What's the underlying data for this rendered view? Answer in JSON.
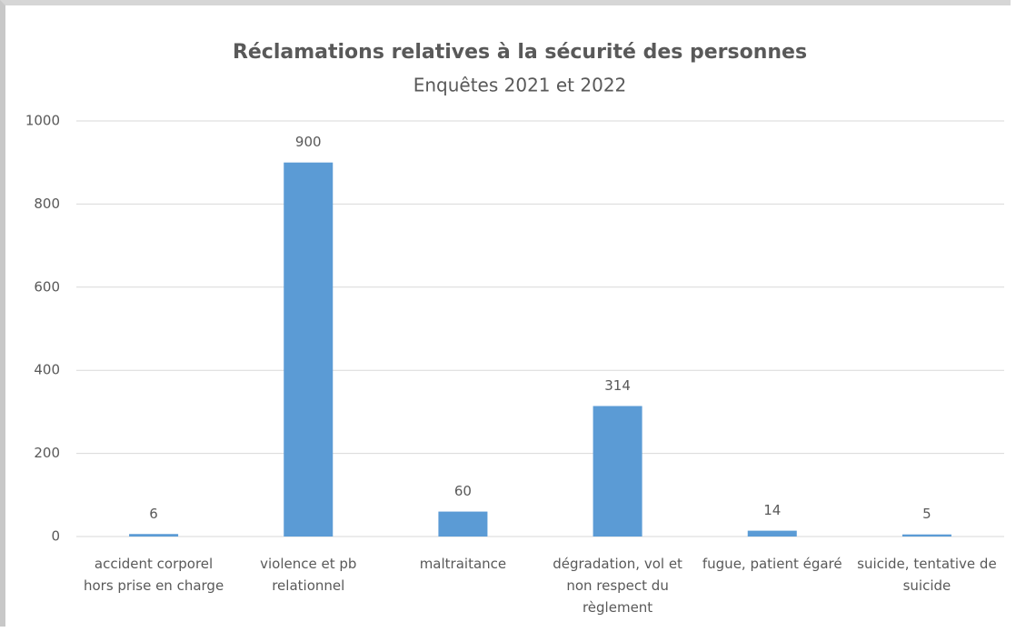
{
  "chart_data": {
    "type": "bar",
    "title": "Réclamations relatives à la sécurité des personnes",
    "subtitle": "Enquêtes 2021 et 2022",
    "categories": [
      "accident corporel hors prise en charge",
      "violence et pb relationnel",
      "maltraitance",
      "dégradation, vol et non respect du règlement",
      "fugue, patient égaré",
      "suicide, tentative de suicide"
    ],
    "values": [
      6,
      900,
      60,
      314,
      14,
      5
    ],
    "color": "#5b9bd5",
    "ylim": [
      0,
      1000
    ],
    "yticks": [
      0,
      200,
      400,
      600,
      800,
      1000
    ],
    "grid": true
  }
}
